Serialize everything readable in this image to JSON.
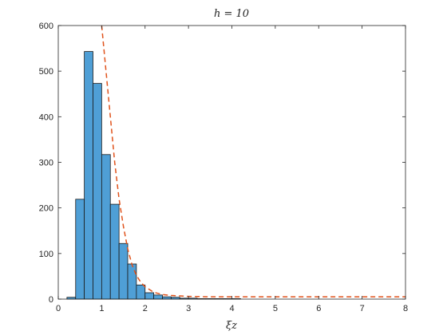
{
  "chart_data": {
    "type": "bar",
    "title": "h = 10",
    "xlabel": "ξz",
    "ylabel": "",
    "xlim": [
      0,
      8
    ],
    "ylim": [
      0,
      600
    ],
    "xticks": [
      0,
      1,
      2,
      3,
      4,
      5,
      6,
      7,
      8
    ],
    "yticks": [
      0,
      100,
      200,
      300,
      400,
      500,
      600
    ],
    "grid": false,
    "histogram": {
      "bin_width": 0.2,
      "bin_starts": [
        0.2,
        0.4,
        0.6,
        0.8,
        1.0,
        1.2,
        1.4,
        1.6,
        1.8,
        2.0,
        2.2,
        2.4,
        2.6,
        2.8,
        3.0,
        3.2,
        3.4,
        3.6,
        3.8,
        4.0
      ],
      "counts": [
        4,
        219,
        543,
        473,
        317,
        208,
        122,
        77,
        31,
        14,
        9,
        5,
        4,
        2,
        2,
        1,
        1,
        1,
        1,
        1
      ],
      "fill_color": "#4f9fd6",
      "edge_color": "#1a1a1a"
    },
    "curve": {
      "style": "dashed",
      "color": "#e0521b",
      "x": [
        1.0,
        1.05,
        1.1,
        1.2,
        1.3,
        1.4,
        1.5,
        1.6,
        1.7,
        1.8,
        1.9,
        2.0,
        2.2,
        2.4,
        2.6,
        2.8,
        3.0,
        3.5,
        4.0,
        5.0,
        6.0,
        7.0,
        8.0
      ],
      "y": [
        600,
        550,
        500,
        400,
        300,
        220,
        160,
        110,
        75,
        52,
        37,
        27,
        15,
        10,
        8,
        7,
        6,
        5,
        5,
        5,
        5,
        5,
        5
      ]
    }
  }
}
